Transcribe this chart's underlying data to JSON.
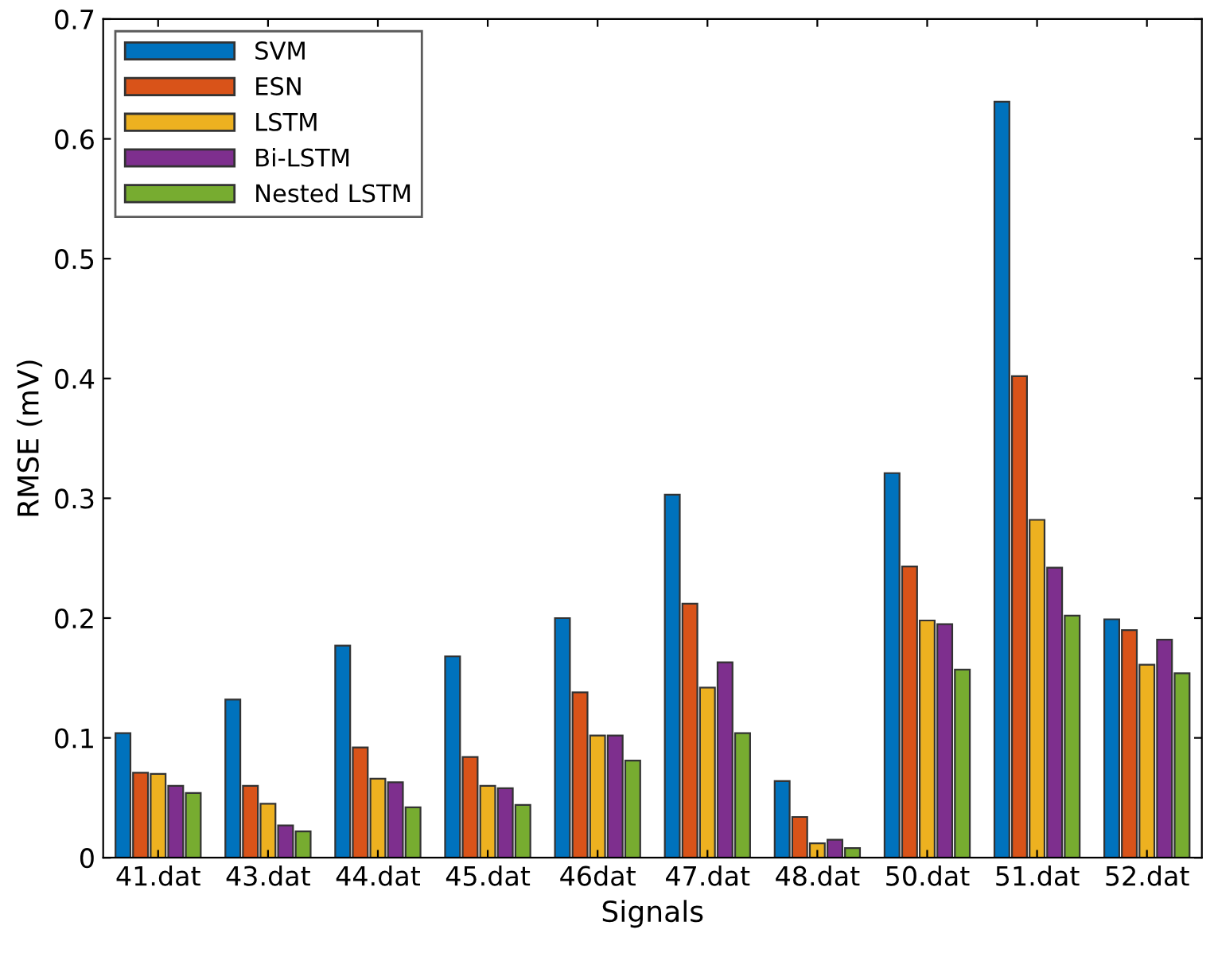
{
  "chart_data": {
    "type": "bar",
    "xlabel": "Signals",
    "ylabel": "RMSE (mV)",
    "categories": [
      "41.dat",
      "43.dat",
      "44.dat",
      "45.dat",
      "46dat",
      "47.dat",
      "48.dat",
      "50.dat",
      "51.dat",
      "52.dat"
    ],
    "series": [
      {
        "name": "SVM",
        "color": "#0072bd",
        "values": [
          0.104,
          0.132,
          0.177,
          0.168,
          0.2,
          0.303,
          0.064,
          0.321,
          0.631,
          0.199
        ]
      },
      {
        "name": "ESN",
        "color": "#d95319",
        "values": [
          0.071,
          0.06,
          0.092,
          0.084,
          0.138,
          0.212,
          0.034,
          0.243,
          0.402,
          0.19
        ]
      },
      {
        "name": "LSTM",
        "color": "#edb120",
        "values": [
          0.07,
          0.045,
          0.066,
          0.06,
          0.102,
          0.142,
          0.012,
          0.198,
          0.282,
          0.161
        ]
      },
      {
        "name": "Bi-LSTM",
        "color": "#7e2f8e",
        "values": [
          0.06,
          0.027,
          0.063,
          0.058,
          0.102,
          0.163,
          0.015,
          0.195,
          0.242,
          0.182
        ]
      },
      {
        "name": "Nested LSTM",
        "color": "#77ac30",
        "values": [
          0.054,
          0.022,
          0.042,
          0.044,
          0.081,
          0.104,
          0.008,
          0.157,
          0.202,
          0.154
        ]
      }
    ],
    "ylim": [
      0,
      0.7
    ],
    "yticks": [
      0,
      0.1,
      0.2,
      0.3,
      0.4,
      0.5,
      0.6,
      0.7
    ],
    "grid": false,
    "legend": "top left"
  }
}
